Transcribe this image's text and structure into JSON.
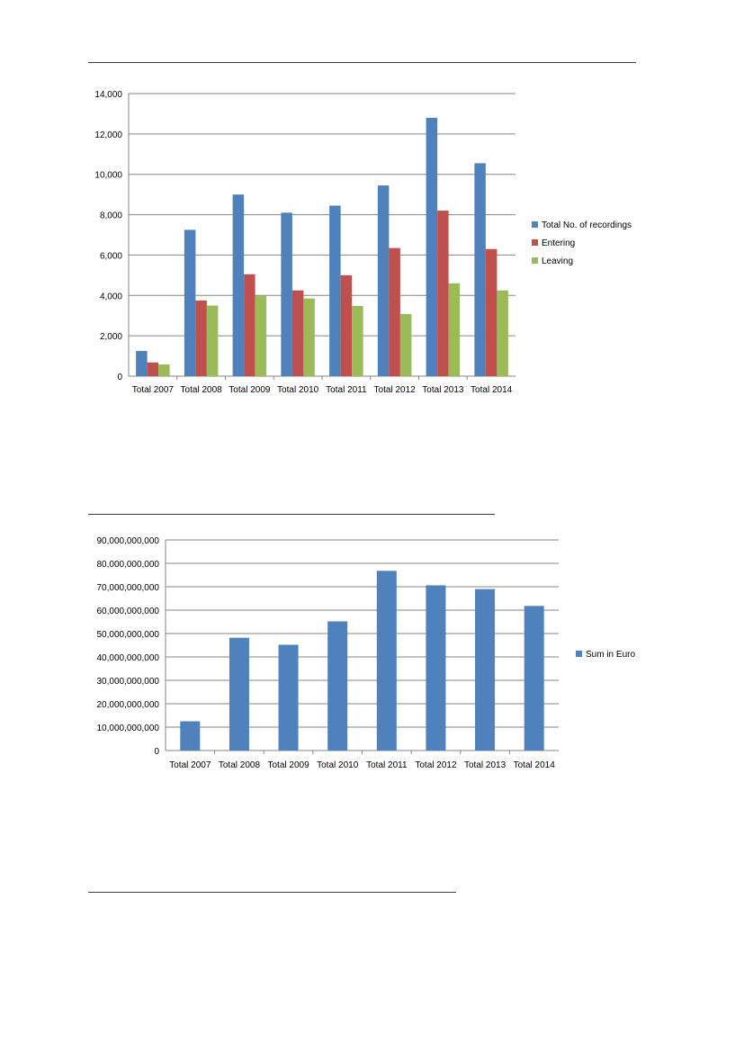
{
  "chart_data": [
    {
      "type": "bar",
      "categories": [
        "Total 2007",
        "Total 2008",
        "Total 2009",
        "Total 2010",
        "Total 2011",
        "Total 2012",
        "Total 2013",
        "Total 2014"
      ],
      "series": [
        {
          "name": "Total No. of recordings",
          "color": "#4F81BD",
          "values": [
            1250,
            7250,
            9000,
            8100,
            8450,
            9450,
            12800,
            10550
          ]
        },
        {
          "name": "Entering",
          "color": "#C0504D",
          "values": [
            680,
            3750,
            5050,
            4250,
            5000,
            6350,
            8200,
            6300
          ]
        },
        {
          "name": "Leaving",
          "color": "#9BBB59",
          "values": [
            580,
            3500,
            3980,
            3850,
            3480,
            3080,
            4600,
            4250
          ]
        }
      ],
      "yticks": [
        "0",
        "2,000",
        "4,000",
        "6,000",
        "8,000",
        "10,000",
        "12,000",
        "14,000"
      ],
      "ylim": [
        0,
        14000
      ],
      "grid": true,
      "legend": "right"
    },
    {
      "type": "bar",
      "categories": [
        "Total 2007",
        "Total 2008",
        "Total 2009",
        "Total 2010",
        "Total 2011",
        "Total 2012",
        "Total 2013",
        "Total 2014"
      ],
      "series": [
        {
          "name": "Sum in Euro",
          "color": "#4F81BD",
          "values": [
            12500000000,
            48200000000,
            45200000000,
            55200000000,
            76800000000,
            70600000000,
            69000000000,
            61800000000
          ]
        }
      ],
      "yticks": [
        "0",
        "10,000,000,000",
        "20,000,000,000",
        "30,000,000,000",
        "40,000,000,000",
        "50,000,000,000",
        "60,000,000,000",
        "70,000,000,000",
        "80,000,000,000",
        "90,000,000,000"
      ],
      "ylim": [
        0,
        90000000000
      ],
      "grid": true,
      "legend": "right"
    }
  ]
}
